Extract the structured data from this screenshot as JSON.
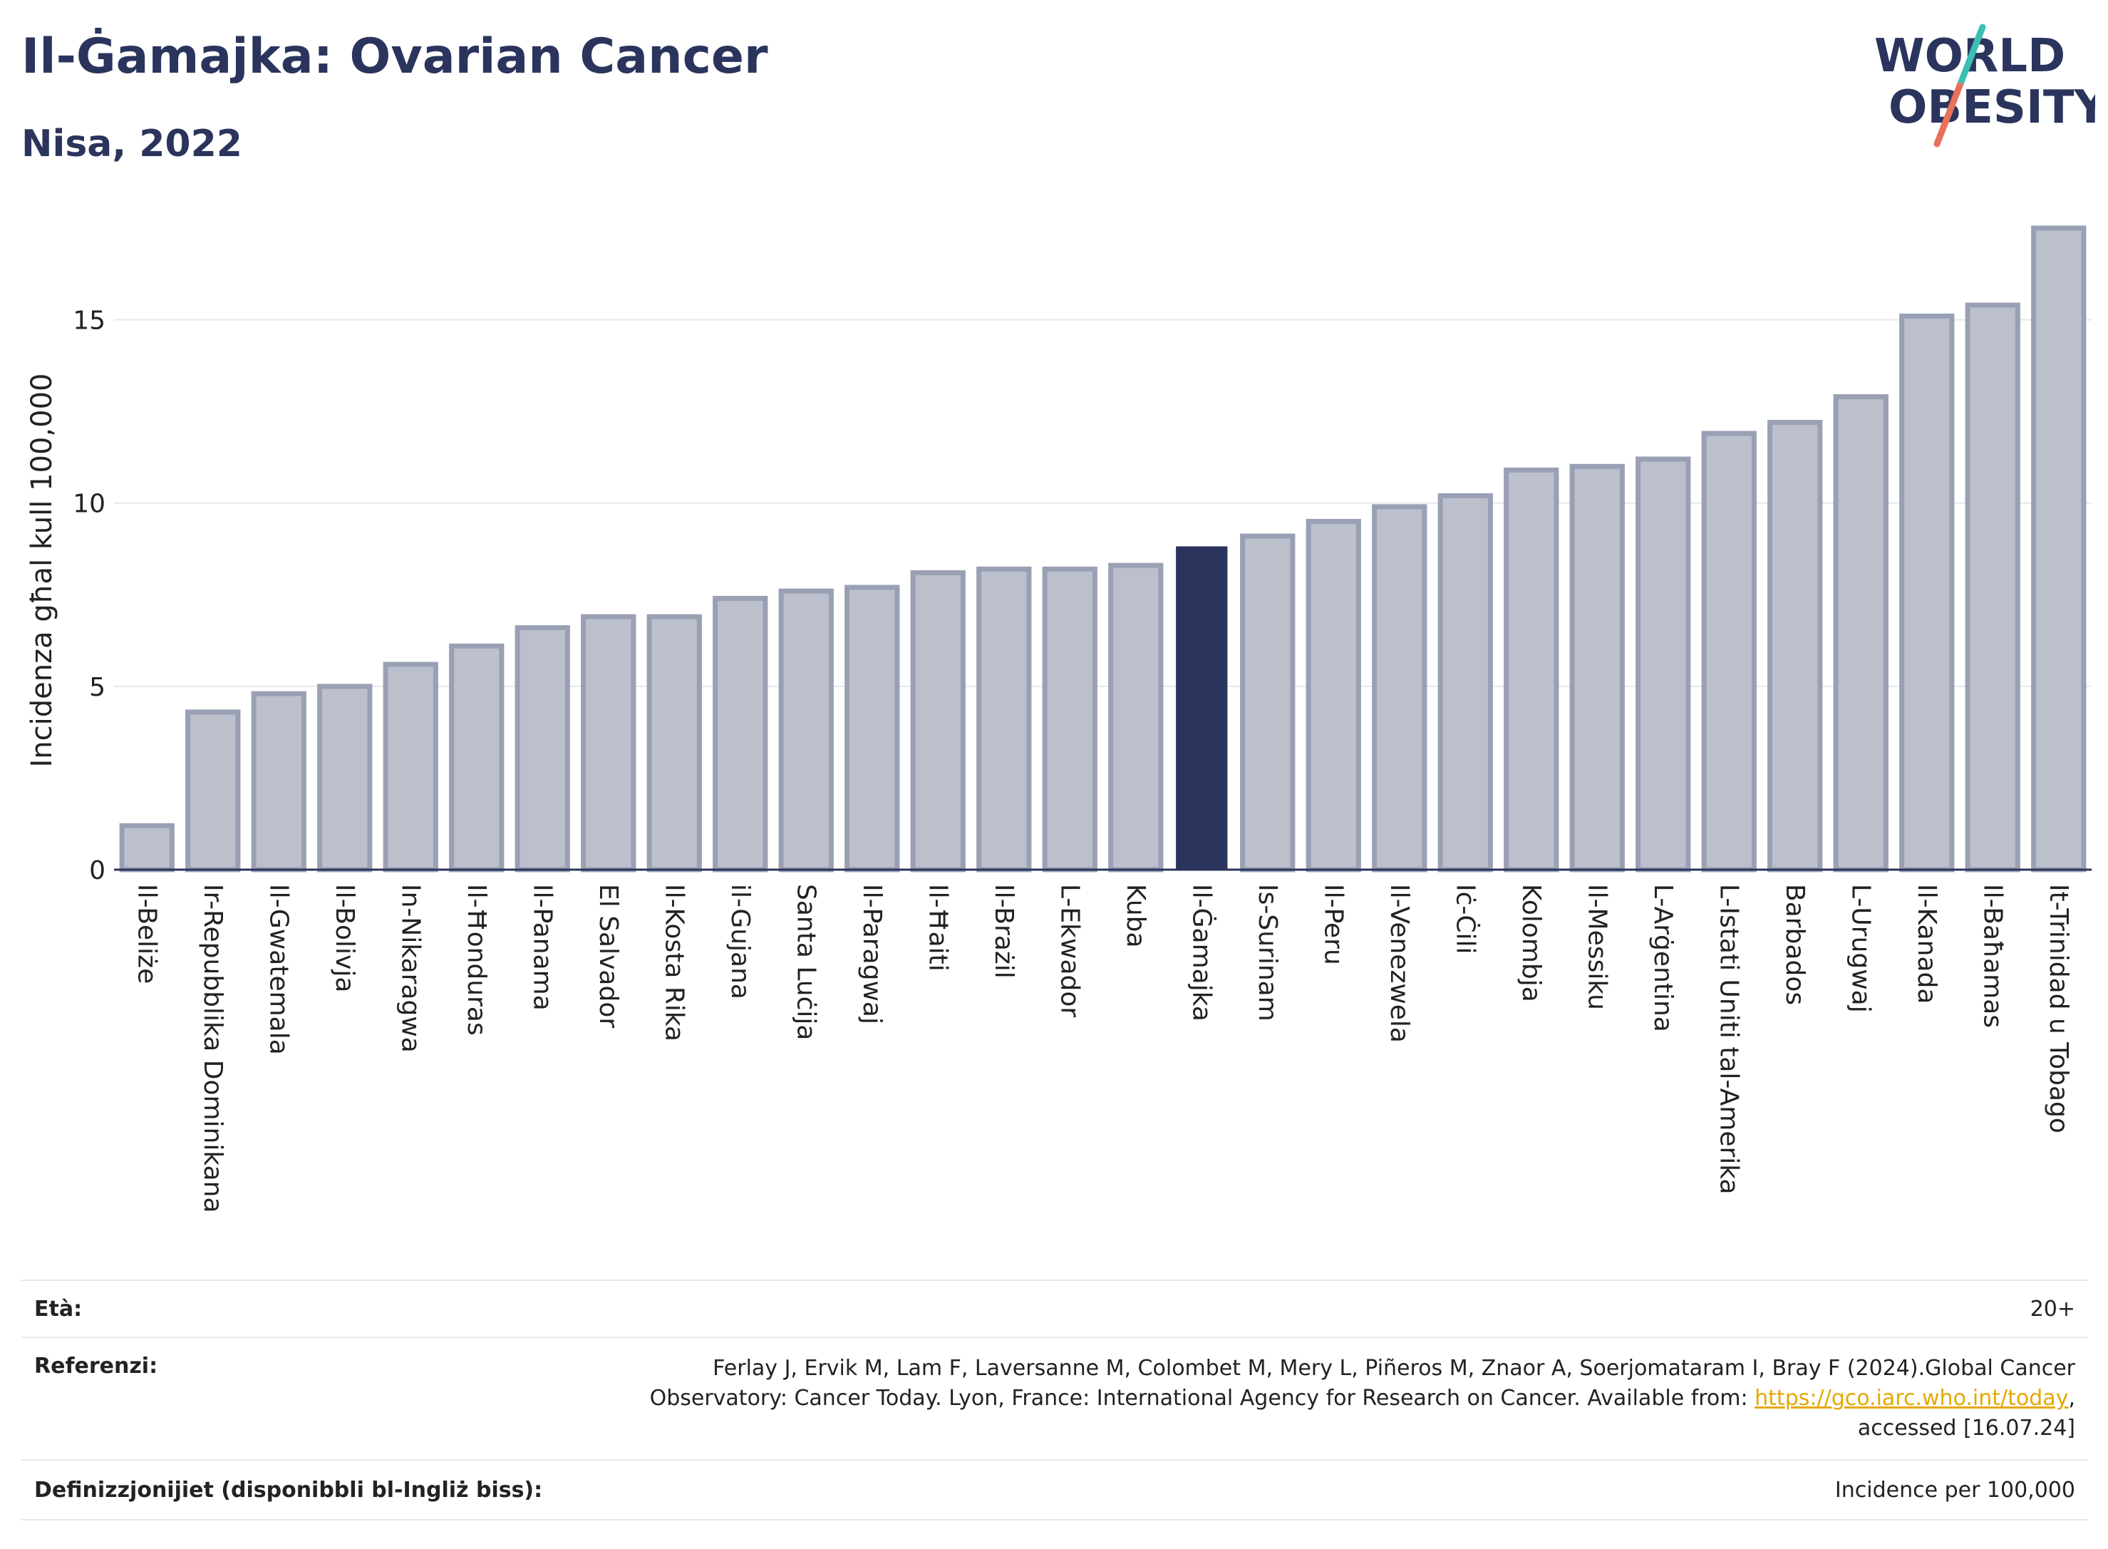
{
  "header": {
    "title": "Il-Ġamajka: Ovarian Cancer",
    "subtitle": "Nisa, 2022"
  },
  "logo": {
    "line1": "WORLD",
    "line2": "OBESITY"
  },
  "colors": {
    "highlight": "#2b345c",
    "bar_fill": "#bcc0cd",
    "bar_stroke": "#9aa0b4",
    "grid": "#e5e7eb",
    "logo_teal": "#3bbfb3",
    "logo_coral": "#e8715a"
  },
  "chart_data": {
    "type": "bar",
    "ylabel": "Incidenza għal kull 100,000",
    "ylim": [
      0,
      17.5
    ],
    "yticks": [
      0,
      5,
      10,
      15
    ],
    "grid": true,
    "highlight": "Il-Ġamajka",
    "categories": [
      "Il-Beliże",
      "Ir-Repubblika Dominikana",
      "Il-Gwatemala",
      "Il-Bolivja",
      "In-Nikaragwa",
      "Il-Ħonduras",
      "Il-Panama",
      "El Salvador",
      "Il-Kosta Rika",
      "il-Gujana",
      "Santa Luċija",
      "Il-Paragwaj",
      "Il-Ħaiti",
      "Il-Brażil",
      "L-Ekwador",
      "Kuba",
      "Il-Ġamajka",
      "Is-Surinam",
      "Il-Peru",
      "Il-Venezwela",
      "Iċ-Ċili",
      "Kolombja",
      "Il-Messiku",
      "L-Arġentina",
      "L-Istati Uniti tal-Amerika",
      "Barbados",
      "L-Urugwaj",
      "Il-Kanada",
      "Il-Baħamas",
      "It-Trinidad u Tobago"
    ],
    "values": [
      1.2,
      4.3,
      4.8,
      5.0,
      5.6,
      6.1,
      6.6,
      6.9,
      6.9,
      7.4,
      7.6,
      7.7,
      8.1,
      8.2,
      8.2,
      8.3,
      8.8,
      9.1,
      9.5,
      9.9,
      10.2,
      10.9,
      11.0,
      11.2,
      11.9,
      12.2,
      12.9,
      15.1,
      15.4,
      17.5
    ]
  },
  "footer": {
    "age_label": "Età:",
    "age_value": "20+",
    "ref_label": "Referenzi:",
    "ref_line1": "Ferlay J, Ervik M, Lam F, Laversanne M, Colombet M, Mery L, Piñeros M, Znaor A, Soerjomataram I, Bray F (2024).Global Cancer",
    "ref_line2_pre": "Observatory: Cancer Today. Lyon, France: International Agency for Research on Cancer. Available from: ",
    "ref_link": "https://gco.iarc.who.int/today",
    "ref_line2_post": ",",
    "ref_line3": "accessed [16.07.24]",
    "def_label": "Definizzjonijiet (disponibbli bl-Ingliż biss):",
    "def_value": "Incidence per 100,000"
  }
}
